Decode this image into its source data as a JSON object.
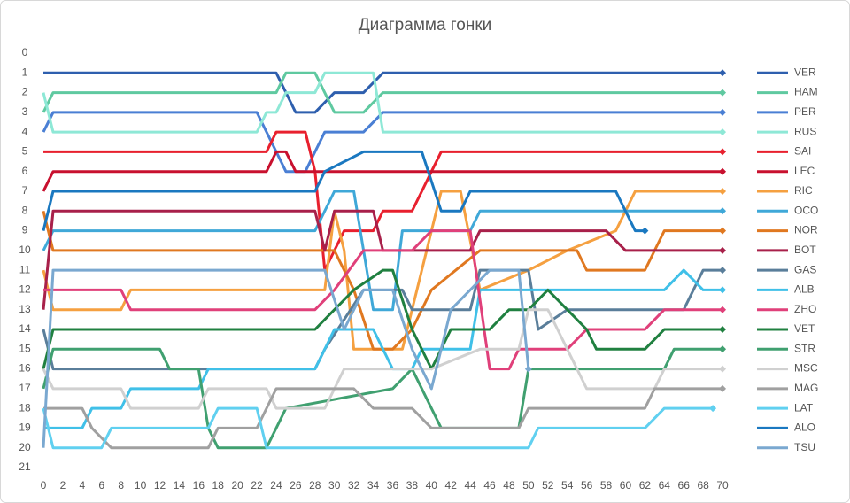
{
  "chart_data": {
    "type": "line",
    "title": "Диаграмма гонки",
    "xlim": [
      0,
      71
    ],
    "xticks": [
      0,
      2,
      4,
      6,
      8,
      10,
      12,
      14,
      16,
      18,
      20,
      22,
      24,
      26,
      28,
      30,
      32,
      34,
      36,
      38,
      40,
      42,
      44,
      46,
      48,
      50,
      52,
      54,
      56,
      58,
      60,
      62,
      64,
      66,
      68,
      70
    ],
    "ylim": [
      21,
      0
    ],
    "yticks": [
      0,
      1,
      2,
      3,
      4,
      5,
      6,
      7,
      8,
      9,
      10,
      11,
      12,
      13,
      14,
      15,
      16,
      17,
      18,
      19,
      20,
      21
    ],
    "series": [
      {
        "name": "VER",
        "color": "#2e5fae",
        "x": [
          0,
          24,
          26,
          28,
          30,
          33,
          35,
          70
        ],
        "values": [
          1,
          1,
          3,
          3,
          2,
          2,
          1,
          1
        ]
      },
      {
        "name": "HAM",
        "color": "#5fc9a0",
        "x": [
          0,
          1,
          24,
          25,
          28,
          30,
          33,
          35,
          70
        ],
        "values": [
          3,
          2,
          2,
          1,
          1,
          3,
          3,
          2,
          2
        ]
      },
      {
        "name": "PER",
        "color": "#4a7fd4",
        "x": [
          0,
          1,
          22,
          24,
          25,
          27,
          28,
          29,
          33,
          35,
          70
        ],
        "values": [
          4,
          3,
          3,
          5,
          6,
          6,
          5,
          4,
          4,
          3,
          3
        ]
      },
      {
        "name": "RUS",
        "color": "#8ee8d6",
        "x": [
          0,
          1,
          22,
          23,
          24,
          25,
          28,
          29,
          34,
          35,
          70
        ],
        "values": [
          2,
          4,
          4,
          3,
          3,
          2,
          2,
          1,
          1,
          4,
          4
        ]
      },
      {
        "name": "SAI",
        "color": "#e8202e",
        "x": [
          0,
          23,
          24,
          27,
          28,
          29,
          30,
          31,
          34,
          35,
          38,
          39,
          40,
          41,
          70
        ],
        "values": [
          5,
          5,
          4,
          4,
          6,
          11,
          10,
          9,
          9,
          8,
          8,
          7,
          6,
          5,
          5
        ]
      },
      {
        "name": "LEC",
        "color": "#c8102e",
        "x": [
          0,
          1,
          23,
          24,
          25,
          26,
          70
        ],
        "values": [
          7,
          6,
          6,
          5,
          5,
          6,
          6
        ]
      },
      {
        "name": "RIC",
        "color": "#f5a040",
        "x": [
          0,
          1,
          8,
          9,
          29,
          30,
          31,
          32,
          37,
          39,
          41,
          43,
          45,
          50,
          54,
          59,
          61,
          70
        ],
        "values": [
          11,
          13,
          13,
          12,
          12,
          8,
          10,
          15,
          15,
          11,
          7,
          7,
          12,
          11,
          10,
          9,
          7,
          7
        ]
      },
      {
        "name": "OCO",
        "color": "#3fa8d8",
        "x": [
          0,
          1,
          28,
          30,
          32,
          34,
          36,
          37,
          44,
          45,
          70
        ],
        "values": [
          10,
          9,
          9,
          7,
          7,
          13,
          13,
          9,
          9,
          8,
          8
        ]
      },
      {
        "name": "NOR",
        "color": "#e07820",
        "x": [
          0,
          1,
          30,
          32,
          34,
          36,
          38,
          40,
          45,
          55,
          56,
          62,
          64,
          70
        ],
        "values": [
          8,
          10,
          10,
          12,
          15,
          15,
          14,
          12,
          10,
          10,
          11,
          11,
          9,
          9
        ]
      },
      {
        "name": "BOT",
        "color": "#a8204a",
        "x": [
          0,
          1,
          28,
          29,
          30,
          34,
          35,
          44,
          45,
          58,
          60,
          70
        ],
        "values": [
          13,
          8,
          8,
          10,
          8,
          8,
          10,
          10,
          9,
          9,
          10,
          10
        ]
      },
      {
        "name": "GAS",
        "color": "#5a7e9a",
        "x": [
          0,
          1,
          28,
          29,
          33,
          37,
          38,
          44,
          45,
          50,
          51,
          54,
          66,
          68,
          70
        ],
        "values": [
          14,
          16,
          16,
          15,
          12,
          12,
          13,
          13,
          11,
          11,
          14,
          13,
          13,
          11,
          11
        ]
      },
      {
        "name": "ALB",
        "color": "#40c0e8",
        "x": [
          0,
          4,
          5,
          8,
          9,
          16,
          17,
          28,
          30,
          34,
          36,
          38,
          39,
          44,
          45,
          64,
          66,
          68,
          70
        ],
        "values": [
          19,
          19,
          18,
          18,
          17,
          17,
          16,
          16,
          14,
          14,
          16,
          16,
          15,
          15,
          12,
          12,
          11,
          12,
          12
        ]
      },
      {
        "name": "ZHO",
        "color": "#e0407a",
        "x": [
          0,
          8,
          9,
          28,
          30,
          33,
          38,
          40,
          44,
          46,
          48,
          49,
          54,
          56,
          62,
          64,
          70
        ],
        "values": [
          12,
          12,
          13,
          13,
          12,
          10,
          10,
          9,
          9,
          16,
          16,
          15,
          15,
          14,
          14,
          13,
          13
        ]
      },
      {
        "name": "VET",
        "color": "#208040",
        "x": [
          0,
          1,
          28,
          30,
          32,
          35,
          36,
          38,
          40,
          42,
          46,
          48,
          50,
          52,
          54,
          56,
          57,
          62,
          64,
          70
        ],
        "values": [
          16,
          14,
          14,
          13,
          12,
          11,
          11,
          14,
          16,
          14,
          14,
          13,
          13,
          12,
          13,
          14,
          15,
          15,
          14,
          14
        ]
      },
      {
        "name": "STR",
        "color": "#40a070",
        "x": [
          0,
          1,
          12,
          13,
          16,
          17,
          18,
          23,
          24,
          25,
          36,
          38,
          39,
          40,
          41,
          49,
          50,
          64,
          65,
          70
        ],
        "values": [
          17,
          15,
          15,
          16,
          16,
          19,
          20,
          20,
          19,
          18,
          17,
          16,
          17,
          18,
          19,
          19,
          16,
          16,
          15,
          15
        ]
      },
      {
        "name": "MSC",
        "color": "#d0d0d0",
        "x": [
          0,
          1,
          8,
          9,
          16,
          17,
          23,
          24,
          29,
          31,
          40,
          45,
          49,
          50,
          52,
          56,
          63,
          64,
          70
        ],
        "values": [
          16,
          17,
          17,
          18,
          18,
          17,
          17,
          18,
          18,
          16,
          16,
          15,
          15,
          13,
          13,
          17,
          17,
          16,
          16
        ]
      },
      {
        "name": "MAG",
        "color": "#a0a0a0",
        "x": [
          0,
          4,
          5,
          7,
          17,
          18,
          22,
          24,
          32,
          34,
          38,
          40,
          49,
          50,
          62,
          63,
          70
        ],
        "values": [
          18,
          18,
          19,
          20,
          20,
          19,
          19,
          17,
          17,
          18,
          18,
          19,
          19,
          18,
          18,
          17,
          17
        ]
      },
      {
        "name": "LAT",
        "color": "#60d0f0",
        "x": [
          0,
          1,
          6,
          7,
          17,
          18,
          22,
          23,
          50,
          51,
          62,
          64,
          69
        ],
        "values": [
          18,
          20,
          20,
          19,
          19,
          18,
          18,
          20,
          20,
          19,
          19,
          18,
          18
        ]
      },
      {
        "name": "ALO",
        "color": "#1a78c0",
        "x": [
          0,
          1,
          28,
          29,
          33,
          39,
          41,
          43,
          44,
          59,
          61,
          62
        ],
        "values": [
          9,
          7,
          7,
          6,
          5,
          5,
          8,
          8,
          7,
          7,
          9,
          9
        ]
      },
      {
        "name": "TSU",
        "color": "#7aa8d0",
        "x": [
          0,
          1,
          29,
          31,
          33,
          36,
          38,
          40,
          42,
          46,
          49,
          50
        ],
        "values": [
          20,
          11,
          11,
          14,
          12,
          12,
          15,
          17,
          13,
          11,
          11,
          16
        ]
      }
    ]
  }
}
